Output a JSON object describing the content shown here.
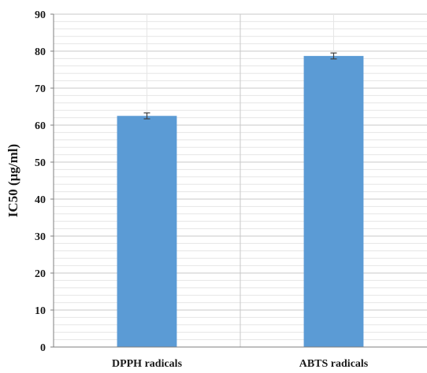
{
  "chart_data": {
    "type": "bar",
    "title": "",
    "xlabel": "",
    "ylabel": "IC50 (µg/ml)",
    "categories": [
      "DPPH radicals",
      "ABTS radicals"
    ],
    "values": [
      62.5,
      78.7
    ],
    "error": [
      0.8,
      0.8
    ],
    "ylim": [
      0,
      90
    ],
    "yticks": [
      0,
      10,
      20,
      30,
      40,
      50,
      60,
      70,
      80,
      90
    ],
    "grid": true,
    "minor_grid": true,
    "legend": "none",
    "colors": {
      "bar": "#5b9bd5",
      "error_bar": "#404040",
      "major_grid": "#c9c9c9",
      "minor_grid": "#e6e6e6",
      "axis": "#7f7f7f"
    }
  }
}
